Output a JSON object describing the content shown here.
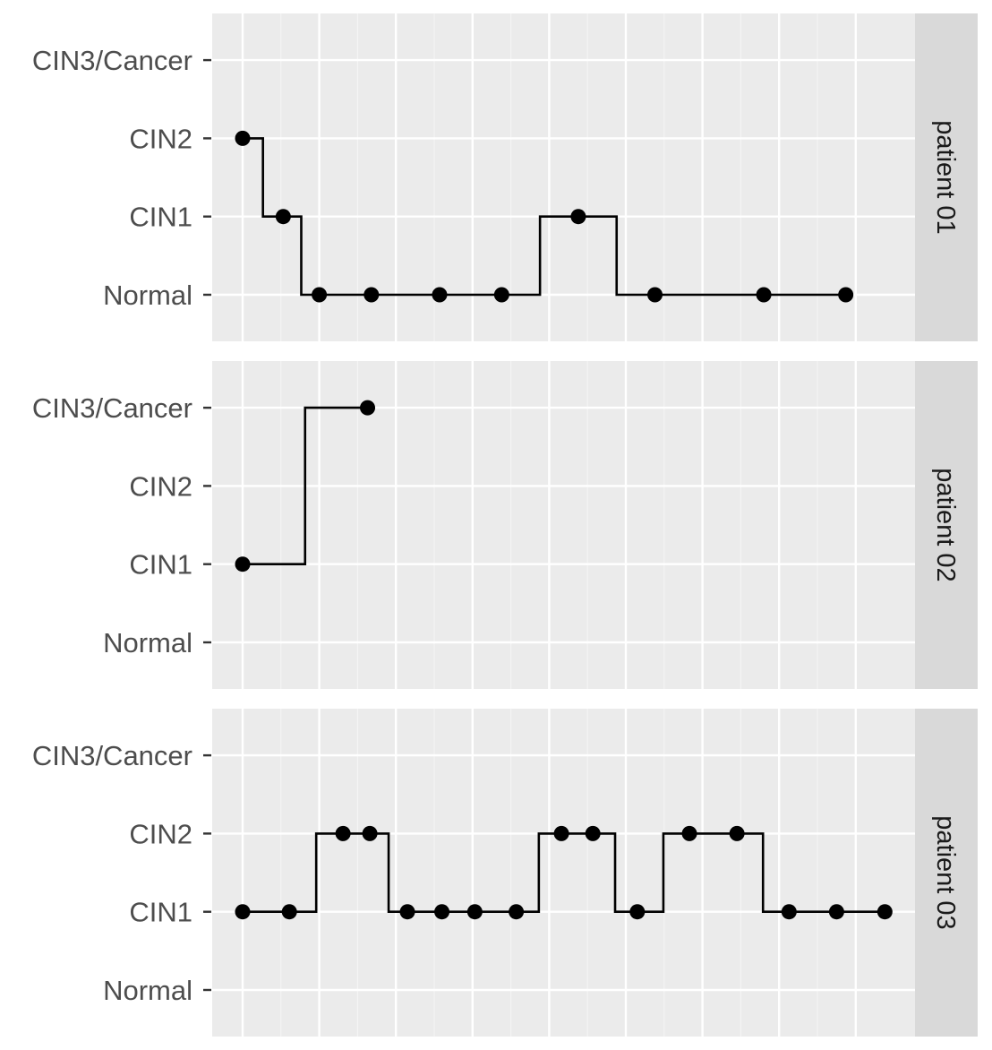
{
  "chart_data": {
    "type": "step-line",
    "facet_direction": "vertical",
    "levels": [
      "Normal",
      "CIN1",
      "CIN2",
      "CIN3/Cancer"
    ],
    "xlim": [
      0,
      8.4
    ],
    "x_gridlines": [
      0,
      1,
      2,
      3,
      4,
      5,
      6,
      7,
      8
    ],
    "grid": true,
    "panels": [
      {
        "strip_label": "patient 01",
        "points": [
          {
            "x": 0.0,
            "level": "CIN2"
          },
          {
            "x": 0.53,
            "level": "CIN1"
          },
          {
            "x": 1.0,
            "level": "Normal"
          },
          {
            "x": 1.68,
            "level": "Normal"
          },
          {
            "x": 2.57,
            "level": "Normal"
          },
          {
            "x": 3.38,
            "level": "Normal"
          },
          {
            "x": 4.38,
            "level": "CIN1"
          },
          {
            "x": 5.38,
            "level": "Normal"
          },
          {
            "x": 6.8,
            "level": "Normal"
          },
          {
            "x": 7.87,
            "level": "Normal"
          }
        ]
      },
      {
        "strip_label": "patient 02",
        "points": [
          {
            "x": 0.0,
            "level": "CIN1"
          },
          {
            "x": 1.63,
            "level": "CIN3/Cancer"
          }
        ]
      },
      {
        "strip_label": "patient 03",
        "points": [
          {
            "x": 0.0,
            "level": "CIN1"
          },
          {
            "x": 0.61,
            "level": "CIN1"
          },
          {
            "x": 1.31,
            "level": "CIN2"
          },
          {
            "x": 1.66,
            "level": "CIN2"
          },
          {
            "x": 2.15,
            "level": "CIN1"
          },
          {
            "x": 2.6,
            "level": "CIN1"
          },
          {
            "x": 3.03,
            "level": "CIN1"
          },
          {
            "x": 3.57,
            "level": "CIN1"
          },
          {
            "x": 4.16,
            "level": "CIN2"
          },
          {
            "x": 4.57,
            "level": "CIN2"
          },
          {
            "x": 5.15,
            "level": "CIN1"
          },
          {
            "x": 5.83,
            "level": "CIN2"
          },
          {
            "x": 6.45,
            "level": "CIN2"
          },
          {
            "x": 7.13,
            "level": "CIN1"
          },
          {
            "x": 7.75,
            "level": "CIN1"
          },
          {
            "x": 8.38,
            "level": "CIN1"
          }
        ]
      }
    ]
  }
}
